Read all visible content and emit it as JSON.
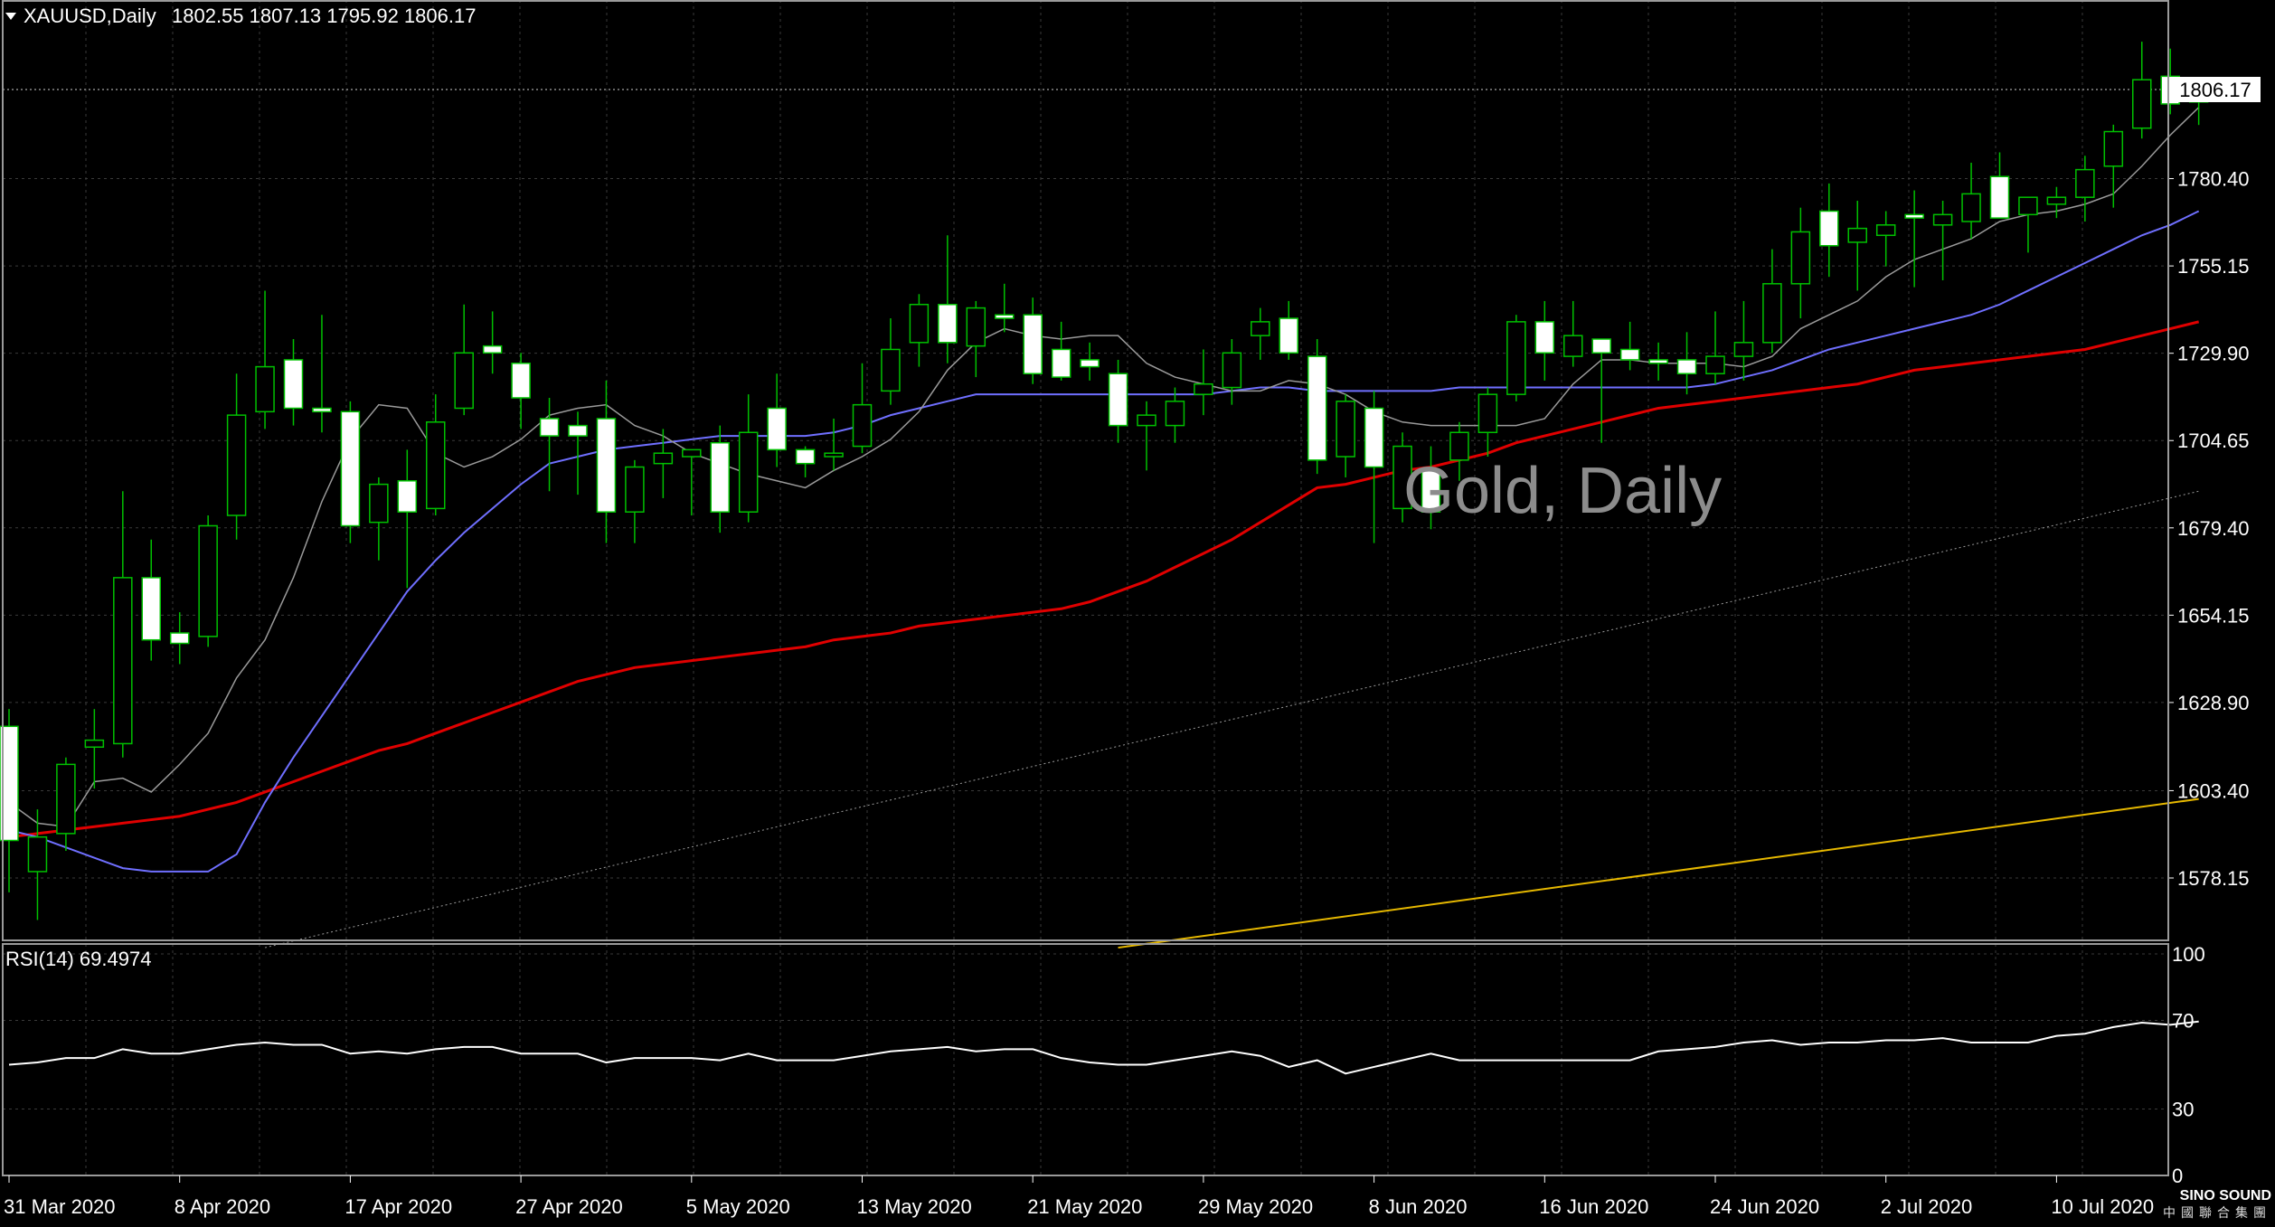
{
  "header": {
    "symbol": "XAUUSD,Daily",
    "ohlc": "1802.55 1807.13 1795.92 1806.17",
    "watermark": "Gold, Daily",
    "current_price_label": "1806.17",
    "rsi_label": "RSI(14) 69.4974",
    "logo_name": "SINO SOUND",
    "logo_sub": "中國聯合集團"
  },
  "colors": {
    "background": "#000000",
    "grid": "#3a3a3a",
    "bull": "#00c000",
    "bear_body": "#ffffff",
    "ma_fast": "#9a9a9a",
    "ma_20": "#6f6fff",
    "ma_50": "#e00000",
    "ma_100": "#9a9a9a",
    "ma_200": "#e6b800",
    "rsi": "#ffffff"
  },
  "chart_data": [
    {
      "type": "candlestick",
      "title": "Gold, Daily",
      "ylim": [
        1558,
        1830
      ],
      "y_ticks": [
        1578.15,
        1603.4,
        1628.9,
        1654.15,
        1679.4,
        1704.65,
        1729.9,
        1755.15,
        1780.4
      ],
      "current_price": 1806.17,
      "x_labels": [
        "31 Mar 2020",
        "8 Apr 2020",
        "17 Apr 2020",
        "27 Apr 2020",
        "5 May 2020",
        "13 May 2020",
        "21 May 2020",
        "29 May 2020",
        "8 Jun 2020",
        "16 Jun 2020",
        "24 Jun 2020",
        "2 Jul 2020",
        "10 Jul 2020"
      ],
      "x_label_index": [
        0,
        6,
        12,
        18,
        24,
        30,
        36,
        42,
        48,
        54,
        60,
        66,
        72
      ],
      "candles": [
        {
          "o": 1622,
          "h": 1627,
          "l": 1574,
          "c": 1589
        },
        {
          "o": 1580,
          "h": 1598,
          "l": 1566,
          "c": 1590
        },
        {
          "o": 1591,
          "h": 1613,
          "l": 1586,
          "c": 1611
        },
        {
          "o": 1616,
          "h": 1627,
          "l": 1604,
          "c": 1618
        },
        {
          "o": 1617,
          "h": 1690,
          "l": 1613,
          "c": 1665
        },
        {
          "o": 1665,
          "h": 1676,
          "l": 1641,
          "c": 1647
        },
        {
          "o": 1649,
          "h": 1655,
          "l": 1640,
          "c": 1646
        },
        {
          "o": 1648,
          "h": 1683,
          "l": 1645,
          "c": 1680
        },
        {
          "o": 1683,
          "h": 1724,
          "l": 1676,
          "c": 1712
        },
        {
          "o": 1713,
          "h": 1748,
          "l": 1708,
          "c": 1726
        },
        {
          "o": 1728,
          "h": 1734,
          "l": 1709,
          "c": 1714
        },
        {
          "o": 1714,
          "h": 1741,
          "l": 1707,
          "c": 1713
        },
        {
          "o": 1713,
          "h": 1716,
          "l": 1675,
          "c": 1680
        },
        {
          "o": 1681,
          "h": 1694,
          "l": 1670,
          "c": 1692
        },
        {
          "o": 1693,
          "h": 1702,
          "l": 1662,
          "c": 1684
        },
        {
          "o": 1685,
          "h": 1718,
          "l": 1683,
          "c": 1710
        },
        {
          "o": 1714,
          "h": 1744,
          "l": 1712,
          "c": 1730
        },
        {
          "o": 1732,
          "h": 1742,
          "l": 1724,
          "c": 1730
        },
        {
          "o": 1727,
          "h": 1730,
          "l": 1708,
          "c": 1717
        },
        {
          "o": 1711,
          "h": 1717,
          "l": 1690,
          "c": 1706
        },
        {
          "o": 1709,
          "h": 1713,
          "l": 1689,
          "c": 1706
        },
        {
          "o": 1711,
          "h": 1722,
          "l": 1675,
          "c": 1684
        },
        {
          "o": 1684,
          "h": 1699,
          "l": 1675,
          "c": 1697
        },
        {
          "o": 1698,
          "h": 1708,
          "l": 1688,
          "c": 1701
        },
        {
          "o": 1700,
          "h": 1702,
          "l": 1683,
          "c": 1702
        },
        {
          "o": 1704,
          "h": 1709,
          "l": 1678,
          "c": 1684
        },
        {
          "o": 1684,
          "h": 1718,
          "l": 1681,
          "c": 1707
        },
        {
          "o": 1714,
          "h": 1724,
          "l": 1697,
          "c": 1702
        },
        {
          "o": 1702,
          "h": 1703,
          "l": 1694,
          "c": 1698
        },
        {
          "o": 1700,
          "h": 1711,
          "l": 1696,
          "c": 1701
        },
        {
          "o": 1703,
          "h": 1727,
          "l": 1701,
          "c": 1715
        },
        {
          "o": 1719,
          "h": 1740,
          "l": 1715,
          "c": 1731
        },
        {
          "o": 1733,
          "h": 1747,
          "l": 1726,
          "c": 1744
        },
        {
          "o": 1744,
          "h": 1764,
          "l": 1727,
          "c": 1733
        },
        {
          "o": 1732,
          "h": 1745,
          "l": 1723,
          "c": 1743
        },
        {
          "o": 1741,
          "h": 1750,
          "l": 1736,
          "c": 1740
        },
        {
          "o": 1741,
          "h": 1746,
          "l": 1721,
          "c": 1724
        },
        {
          "o": 1731,
          "h": 1739,
          "l": 1722,
          "c": 1723
        },
        {
          "o": 1728,
          "h": 1733,
          "l": 1722,
          "c": 1726
        },
        {
          "o": 1724,
          "h": 1728,
          "l": 1704,
          "c": 1709
        },
        {
          "o": 1709,
          "h": 1716,
          "l": 1696,
          "c": 1712
        },
        {
          "o": 1709,
          "h": 1720,
          "l": 1704,
          "c": 1716
        },
        {
          "o": 1718,
          "h": 1731,
          "l": 1712,
          "c": 1721
        },
        {
          "o": 1720,
          "h": 1734,
          "l": 1715,
          "c": 1730
        },
        {
          "o": 1735,
          "h": 1743,
          "l": 1728,
          "c": 1739
        },
        {
          "o": 1740,
          "h": 1745,
          "l": 1728,
          "c": 1730
        },
        {
          "o": 1729,
          "h": 1734,
          "l": 1695,
          "c": 1699
        },
        {
          "o": 1700,
          "h": 1718,
          "l": 1694,
          "c": 1716
        },
        {
          "o": 1714,
          "h": 1719,
          "l": 1675,
          "c": 1697
        },
        {
          "o": 1685,
          "h": 1707,
          "l": 1681,
          "c": 1703
        },
        {
          "o": 1696,
          "h": 1703,
          "l": 1679,
          "c": 1684
        },
        {
          "o": 1699,
          "h": 1710,
          "l": 1693,
          "c": 1707
        },
        {
          "o": 1707,
          "h": 1720,
          "l": 1700,
          "c": 1718
        },
        {
          "o": 1718,
          "h": 1741,
          "l": 1716,
          "c": 1739
        },
        {
          "o": 1739,
          "h": 1745,
          "l": 1722,
          "c": 1730
        },
        {
          "o": 1729,
          "h": 1745,
          "l": 1726,
          "c": 1735
        },
        {
          "o": 1734,
          "h": 1733,
          "l": 1704,
          "c": 1730
        },
        {
          "o": 1731,
          "h": 1739,
          "l": 1725,
          "c": 1728
        },
        {
          "o": 1728,
          "h": 1733,
          "l": 1722,
          "c": 1727
        },
        {
          "o": 1728,
          "h": 1736,
          "l": 1718,
          "c": 1724
        },
        {
          "o": 1724,
          "h": 1742,
          "l": 1721,
          "c": 1729
        },
        {
          "o": 1729,
          "h": 1745,
          "l": 1722,
          "c": 1733
        },
        {
          "o": 1733,
          "h": 1760,
          "l": 1730,
          "c": 1750
        },
        {
          "o": 1750,
          "h": 1772,
          "l": 1740,
          "c": 1765
        },
        {
          "o": 1771,
          "h": 1779,
          "l": 1752,
          "c": 1761
        },
        {
          "o": 1762,
          "h": 1774,
          "l": 1748,
          "c": 1766
        },
        {
          "o": 1764,
          "h": 1771,
          "l": 1755,
          "c": 1767
        },
        {
          "o": 1770,
          "h": 1777,
          "l": 1749,
          "c": 1769
        },
        {
          "o": 1767,
          "h": 1774,
          "l": 1751,
          "c": 1770
        },
        {
          "o": 1768,
          "h": 1785,
          "l": 1763,
          "c": 1776
        },
        {
          "o": 1781,
          "h": 1788,
          "l": 1769,
          "c": 1769
        },
        {
          "o": 1770,
          "h": 1775,
          "l": 1759,
          "c": 1775
        },
        {
          "o": 1773,
          "h": 1778,
          "l": 1769,
          "c": 1775
        },
        {
          "o": 1775,
          "h": 1787,
          "l": 1768,
          "c": 1783
        },
        {
          "o": 1784,
          "h": 1796,
          "l": 1772,
          "c": 1794
        },
        {
          "o": 1795,
          "h": 1820,
          "l": 1792,
          "c": 1809
        },
        {
          "o": 1810,
          "h": 1818,
          "l": 1799,
          "c": 1802
        },
        {
          "o": 1802.55,
          "h": 1807.13,
          "l": 1795.92,
          "c": 1806.17
        }
      ],
      "ma_fast": [
        1600,
        1594,
        1593,
        1606,
        1607,
        1603,
        1611,
        1620,
        1636,
        1647,
        1665,
        1687,
        1705,
        1715,
        1714,
        1701,
        1697,
        1700,
        1705,
        1712,
        1714,
        1715,
        1709,
        1706,
        1701,
        1698,
        1695,
        1693,
        1691,
        1696,
        1700,
        1705,
        1713,
        1725,
        1733,
        1737,
        1735,
        1734,
        1735,
        1735,
        1727,
        1723,
        1721,
        1719,
        1719,
        1722,
        1721,
        1718,
        1713,
        1710,
        1709,
        1709,
        1709,
        1709,
        1711,
        1721,
        1728,
        1728,
        1727,
        1727,
        1727,
        1726,
        1729,
        1737,
        1741,
        1745,
        1752,
        1757,
        1760,
        1763,
        1768,
        1770,
        1771,
        1773,
        1776,
        1784,
        1793,
        1801
      ],
      "ma_20": [
        1592,
        1590,
        1587,
        1584,
        1581,
        1580,
        1580,
        1580,
        1585,
        1600,
        1613,
        1625,
        1637,
        1649,
        1661,
        1670,
        1678,
        1685,
        1692,
        1698,
        1700,
        1702,
        1703,
        1704,
        1705,
        1706,
        1706,
        1706,
        1706,
        1707,
        1709,
        1712,
        1714,
        1716,
        1718,
        1718,
        1718,
        1718,
        1718,
        1718,
        1718,
        1718,
        1718,
        1719,
        1720,
        1720,
        1719,
        1719,
        1719,
        1719,
        1719,
        1720,
        1720,
        1720,
        1720,
        1720,
        1720,
        1720,
        1720,
        1720,
        1721,
        1723,
        1725,
        1728,
        1731,
        1733,
        1735,
        1737,
        1739,
        1741,
        1744,
        1748,
        1752,
        1756,
        1760,
        1764,
        1767,
        1771
      ],
      "ma_50": [
        1590,
        1591,
        1592,
        1593,
        1594,
        1595,
        1596,
        1598,
        1600,
        1603,
        1606,
        1609,
        1612,
        1615,
        1617,
        1620,
        1623,
        1626,
        1629,
        1632,
        1635,
        1637,
        1639,
        1640,
        1641,
        1642,
        1643,
        1644,
        1645,
        1647,
        1648,
        1649,
        1651,
        1652,
        1653,
        1654,
        1655,
        1656,
        1658,
        1661,
        1664,
        1668,
        1672,
        1676,
        1681,
        1686,
        1691,
        1692,
        1694,
        1696,
        1697,
        1699,
        1701,
        1704,
        1706,
        1708,
        1710,
        1712,
        1714,
        1715,
        1716,
        1717,
        1718,
        1719,
        1720,
        1721,
        1723,
        1725,
        1726,
        1727,
        1728,
        1729,
        1730,
        1731,
        1733,
        1735,
        1737,
        1739
      ],
      "ma_100_segment": {
        "start_index": 9,
        "start_value": 1558,
        "end_value": 1690
      },
      "ma_200_segment": {
        "start_index": 39,
        "start_value": 1558,
        "end_value": 1601
      },
      "rsi": {
        "title": "RSI(14) 69.4974",
        "ylim": [
          0,
          100
        ],
        "levels": [
          30,
          70,
          100
        ],
        "level_labels": [
          "0",
          "30",
          "70",
          "100"
        ],
        "values": [
          50,
          51,
          53,
          53,
          57,
          55,
          55,
          57,
          59,
          60,
          59,
          59,
          55,
          56,
          55,
          57,
          58,
          58,
          55,
          55,
          55,
          51,
          53,
          53,
          53,
          52,
          55,
          52,
          52,
          52,
          54,
          56,
          57,
          58,
          56,
          57,
          57,
          53,
          51,
          50,
          50,
          52,
          54,
          56,
          54,
          49,
          52,
          46,
          49,
          52,
          55,
          52,
          52,
          52,
          52,
          52,
          52,
          52,
          56,
          57,
          58,
          60,
          61,
          59,
          60,
          60,
          61,
          61,
          62,
          60,
          60,
          60,
          63,
          64,
          67,
          69,
          68,
          69.4974
        ]
      }
    }
  ]
}
